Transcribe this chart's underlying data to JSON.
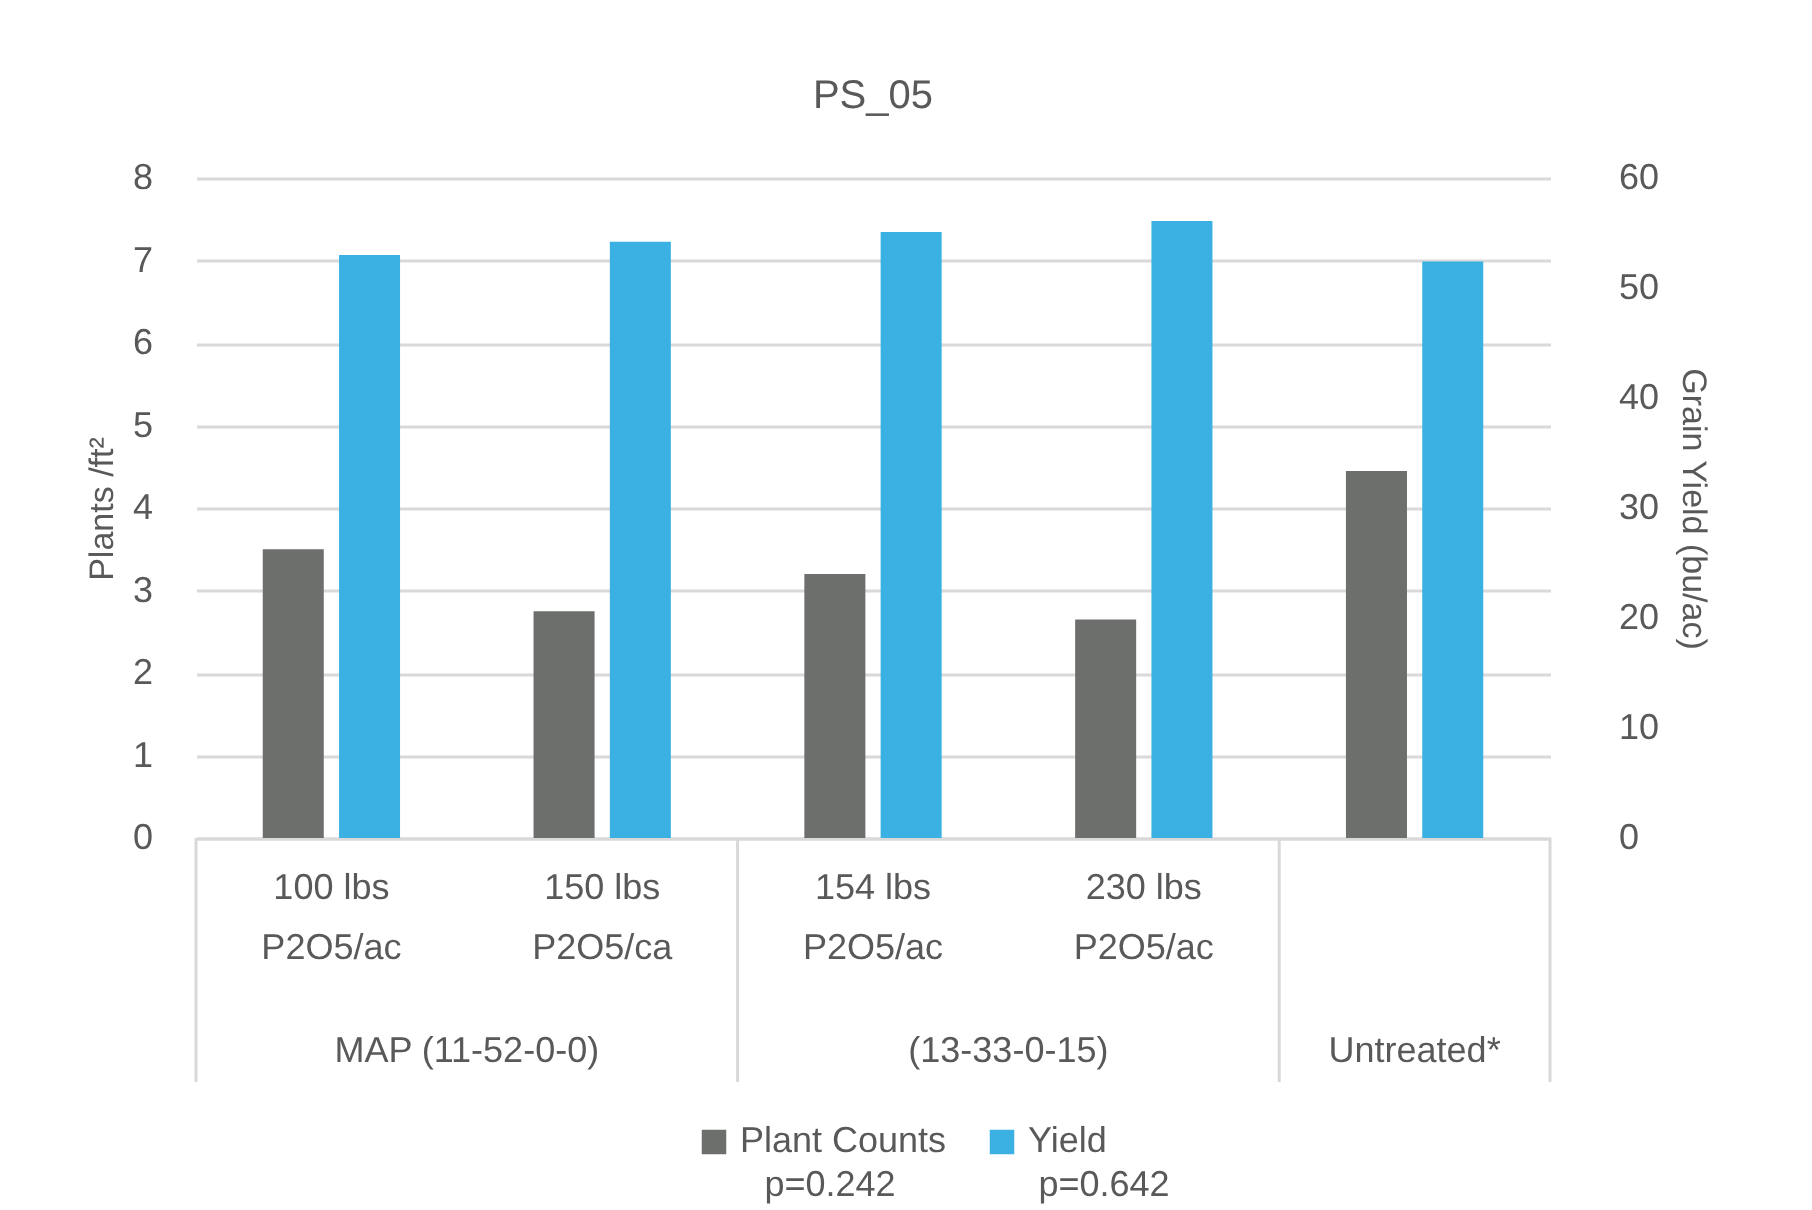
{
  "chart_data": {
    "type": "bar",
    "title": "PS_05",
    "categories": [
      "100 lbs P2O5/ac",
      "150 lbs P2O5/ca",
      "154 lbs P2O5/ac",
      "230 lbs P2O5/ac",
      null
    ],
    "series": [
      {
        "name": "Plant Counts",
        "color": "#6d6f6c",
        "values": [
          3.5,
          2.75,
          3.2,
          2.65,
          4.45
        ]
      },
      {
        "name": "Yield",
        "color": "#3ab1e2",
        "axis": "y2",
        "values": [
          53.0,
          54.2,
          55.1,
          56.1,
          52.4
        ]
      }
    ],
    "ylabel": "Plants /ft²",
    "y2label": "Grain Yield (bu/ac)",
    "ylim": [
      0,
      8
    ],
    "yticks": [
      0,
      1,
      2,
      3,
      4,
      5,
      6,
      7,
      8
    ],
    "y2lim": [
      0,
      60
    ],
    "y2ticks": [
      0,
      10,
      20,
      30,
      40,
      50,
      60
    ],
    "grid": "y",
    "legend": "bottom",
    "annotations": [
      "MAP (11-52-0-0)",
      "(13-33-0-15)",
      "Untreated*",
      "p=0.242",
      "p=0.642"
    ]
  }
}
